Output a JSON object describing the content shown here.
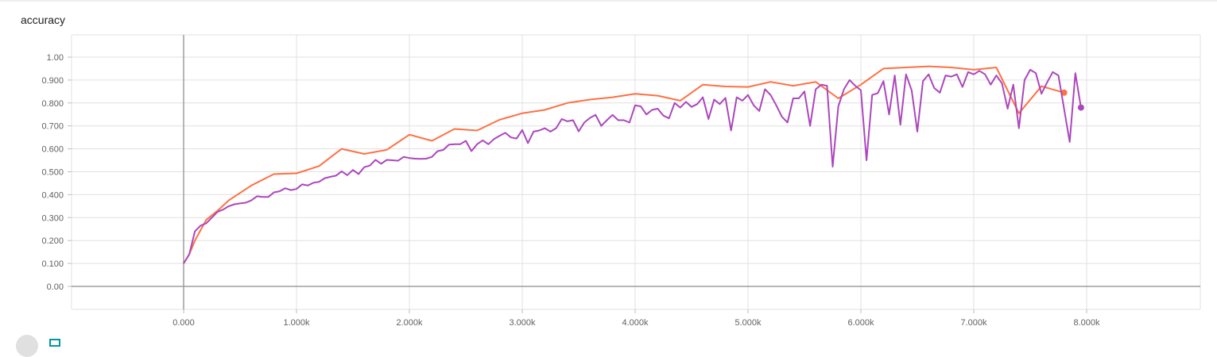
{
  "chart_data": {
    "type": "line",
    "title": "accuracy",
    "xlabel": "",
    "ylabel": "",
    "xlim": [
      -1000,
      9000
    ],
    "ylim": [
      -0.1,
      1.1
    ],
    "grid": true,
    "x_ticks": [
      0,
      1000,
      2000,
      3000,
      4000,
      5000,
      6000,
      7000,
      8000
    ],
    "x_tick_labels": [
      "0.000",
      "1.000k",
      "2.000k",
      "3.000k",
      "4.000k",
      "5.000k",
      "6.000k",
      "7.000k",
      "8.000k"
    ],
    "y_ticks": [
      0,
      0.1,
      0.2,
      0.3,
      0.4,
      0.5,
      0.6,
      0.7,
      0.8,
      0.9,
      1.0
    ],
    "y_tick_labels": [
      "0.00",
      "0.100",
      "0.200",
      "0.300",
      "0.400",
      "0.500",
      "0.600",
      "0.700",
      "0.800",
      "0.900",
      "1.00"
    ],
    "series": [
      {
        "color": "#ff7043",
        "end_marker": true,
        "points": [
          [
            0,
            0.1
          ],
          [
            50,
            0.14
          ],
          [
            100,
            0.2
          ],
          [
            200,
            0.29
          ],
          [
            300,
            0.33
          ],
          [
            400,
            0.375
          ],
          [
            600,
            0.44
          ],
          [
            800,
            0.49
          ],
          [
            1000,
            0.493
          ],
          [
            1200,
            0.525
          ],
          [
            1400,
            0.6
          ],
          [
            1600,
            0.578
          ],
          [
            1800,
            0.596
          ],
          [
            2000,
            0.662
          ],
          [
            2200,
            0.635
          ],
          [
            2400,
            0.687
          ],
          [
            2600,
            0.68
          ],
          [
            2800,
            0.727
          ],
          [
            3000,
            0.755
          ],
          [
            3200,
            0.77
          ],
          [
            3400,
            0.8
          ],
          [
            3600,
            0.815
          ],
          [
            3800,
            0.825
          ],
          [
            4000,
            0.84
          ],
          [
            4200,
            0.832
          ],
          [
            4400,
            0.81
          ],
          [
            4600,
            0.88
          ],
          [
            4800,
            0.872
          ],
          [
            5000,
            0.87
          ],
          [
            5200,
            0.892
          ],
          [
            5400,
            0.875
          ],
          [
            5600,
            0.892
          ],
          [
            5800,
            0.82
          ],
          [
            6000,
            0.88
          ],
          [
            6200,
            0.95
          ],
          [
            6400,
            0.955
          ],
          [
            6600,
            0.96
          ],
          [
            6800,
            0.955
          ],
          [
            7000,
            0.945
          ],
          [
            7200,
            0.955
          ],
          [
            7400,
            0.755
          ],
          [
            7600,
            0.873
          ],
          [
            7800,
            0.845
          ]
        ]
      },
      {
        "color": "#ab47bc",
        "end_marker": true,
        "points": [
          [
            0,
            0.1
          ],
          [
            50,
            0.14
          ],
          [
            100,
            0.24
          ],
          [
            150,
            0.265
          ],
          [
            200,
            0.275
          ],
          [
            250,
            0.3
          ],
          [
            300,
            0.325
          ],
          [
            350,
            0.335
          ],
          [
            400,
            0.35
          ],
          [
            450,
            0.358
          ],
          [
            500,
            0.362
          ],
          [
            550,
            0.365
          ],
          [
            600,
            0.375
          ],
          [
            650,
            0.393
          ],
          [
            700,
            0.39
          ],
          [
            750,
            0.39
          ],
          [
            800,
            0.41
          ],
          [
            850,
            0.415
          ],
          [
            900,
            0.428
          ],
          [
            950,
            0.42
          ],
          [
            1000,
            0.425
          ],
          [
            1050,
            0.445
          ],
          [
            1100,
            0.44
          ],
          [
            1150,
            0.452
          ],
          [
            1200,
            0.456
          ],
          [
            1250,
            0.472
          ],
          [
            1300,
            0.478
          ],
          [
            1350,
            0.483
          ],
          [
            1400,
            0.502
          ],
          [
            1450,
            0.485
          ],
          [
            1500,
            0.508
          ],
          [
            1550,
            0.49
          ],
          [
            1600,
            0.52
          ],
          [
            1650,
            0.527
          ],
          [
            1700,
            0.552
          ],
          [
            1750,
            0.535
          ],
          [
            1800,
            0.552
          ],
          [
            1850,
            0.55
          ],
          [
            1900,
            0.548
          ],
          [
            1950,
            0.565
          ],
          [
            2000,
            0.56
          ],
          [
            2050,
            0.557
          ],
          [
            2100,
            0.556
          ],
          [
            2150,
            0.557
          ],
          [
            2200,
            0.565
          ],
          [
            2250,
            0.59
          ],
          [
            2300,
            0.595
          ],
          [
            2350,
            0.618
          ],
          [
            2400,
            0.62
          ],
          [
            2450,
            0.62
          ],
          [
            2500,
            0.635
          ],
          [
            2550,
            0.59
          ],
          [
            2600,
            0.62
          ],
          [
            2650,
            0.637
          ],
          [
            2700,
            0.62
          ],
          [
            2750,
            0.643
          ],
          [
            2800,
            0.657
          ],
          [
            2850,
            0.67
          ],
          [
            2900,
            0.65
          ],
          [
            2950,
            0.645
          ],
          [
            3000,
            0.682
          ],
          [
            3050,
            0.625
          ],
          [
            3100,
            0.675
          ],
          [
            3150,
            0.68
          ],
          [
            3200,
            0.69
          ],
          [
            3250,
            0.675
          ],
          [
            3300,
            0.69
          ],
          [
            3350,
            0.73
          ],
          [
            3400,
            0.72
          ],
          [
            3450,
            0.725
          ],
          [
            3500,
            0.676
          ],
          [
            3550,
            0.715
          ],
          [
            3600,
            0.735
          ],
          [
            3650,
            0.748
          ],
          [
            3700,
            0.7
          ],
          [
            3750,
            0.725
          ],
          [
            3800,
            0.748
          ],
          [
            3850,
            0.725
          ],
          [
            3900,
            0.725
          ],
          [
            3950,
            0.715
          ],
          [
            4000,
            0.79
          ],
          [
            4050,
            0.785
          ],
          [
            4100,
            0.75
          ],
          [
            4150,
            0.77
          ],
          [
            4200,
            0.775
          ],
          [
            4250,
            0.745
          ],
          [
            4300,
            0.733
          ],
          [
            4350,
            0.8
          ],
          [
            4400,
            0.78
          ],
          [
            4450,
            0.805
          ],
          [
            4500,
            0.783
          ],
          [
            4550,
            0.795
          ],
          [
            4600,
            0.825
          ],
          [
            4650,
            0.73
          ],
          [
            4700,
            0.815
          ],
          [
            4750,
            0.795
          ],
          [
            4800,
            0.822
          ],
          [
            4850,
            0.68
          ],
          [
            4900,
            0.825
          ],
          [
            4950,
            0.81
          ],
          [
            5000,
            0.835
          ],
          [
            5050,
            0.79
          ],
          [
            5100,
            0.765
          ],
          [
            5150,
            0.86
          ],
          [
            5200,
            0.835
          ],
          [
            5250,
            0.79
          ],
          [
            5300,
            0.74
          ],
          [
            5350,
            0.715
          ],
          [
            5400,
            0.82
          ],
          [
            5450,
            0.82
          ],
          [
            5500,
            0.85
          ],
          [
            5550,
            0.7
          ],
          [
            5600,
            0.86
          ],
          [
            5650,
            0.88
          ],
          [
            5700,
            0.875
          ],
          [
            5750,
            0.522
          ],
          [
            5800,
            0.785
          ],
          [
            5850,
            0.86
          ],
          [
            5900,
            0.9
          ],
          [
            5950,
            0.875
          ],
          [
            6000,
            0.855
          ],
          [
            6050,
            0.55
          ],
          [
            6100,
            0.835
          ],
          [
            6150,
            0.843
          ],
          [
            6200,
            0.895
          ],
          [
            6250,
            0.75
          ],
          [
            6300,
            0.92
          ],
          [
            6350,
            0.705
          ],
          [
            6400,
            0.925
          ],
          [
            6450,
            0.855
          ],
          [
            6500,
            0.675
          ],
          [
            6550,
            0.895
          ],
          [
            6600,
            0.925
          ],
          [
            6650,
            0.865
          ],
          [
            6700,
            0.845
          ],
          [
            6750,
            0.92
          ],
          [
            6800,
            0.915
          ],
          [
            6850,
            0.925
          ],
          [
            6900,
            0.87
          ],
          [
            6950,
            0.935
          ],
          [
            7000,
            0.925
          ],
          [
            7050,
            0.94
          ],
          [
            7100,
            0.925
          ],
          [
            7150,
            0.88
          ],
          [
            7200,
            0.92
          ],
          [
            7250,
            0.885
          ],
          [
            7300,
            0.775
          ],
          [
            7350,
            0.88
          ],
          [
            7400,
            0.69
          ],
          [
            7450,
            0.9
          ],
          [
            7500,
            0.945
          ],
          [
            7550,
            0.93
          ],
          [
            7600,
            0.84
          ],
          [
            7650,
            0.89
          ],
          [
            7700,
            0.935
          ],
          [
            7750,
            0.92
          ],
          [
            7800,
            0.775
          ],
          [
            7850,
            0.63
          ],
          [
            7900,
            0.93
          ],
          [
            7950,
            0.78
          ]
        ]
      }
    ]
  }
}
